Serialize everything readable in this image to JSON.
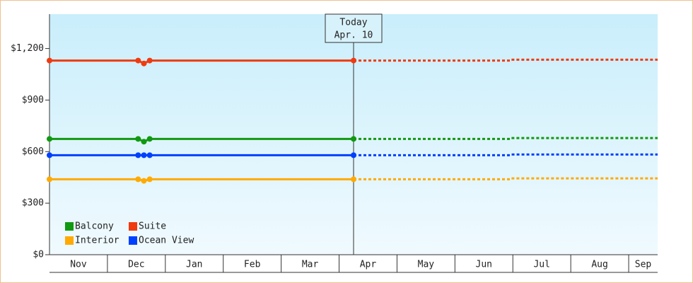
{
  "chart_data": {
    "type": "line",
    "categories": [
      "Nov",
      "Dec",
      "Jan",
      "Feb",
      "Mar",
      "Apr",
      "May",
      "Jun",
      "Jul",
      "Aug",
      "Sep"
    ],
    "xlim": [
      0,
      10.5
    ],
    "ylim": [
      0,
      1400
    ],
    "yticks": [
      {
        "value": 0,
        "label": "$0"
      },
      {
        "value": 300,
        "label": "$300"
      },
      {
        "value": 600,
        "label": "$600"
      },
      {
        "value": 900,
        "label": "$900"
      },
      {
        "value": 1200,
        "label": "$1,200"
      }
    ],
    "today": {
      "x": 5.25,
      "label": "Today",
      "date": "Apr. 10"
    },
    "legend": "bottom-left",
    "series": [
      {
        "name": "Balcony",
        "color": "#119911",
        "x": [
          0,
          1.53,
          1.63,
          1.73,
          5.25
        ],
        "values": [
          674,
          674,
          658,
          674,
          674
        ],
        "forecast": {
          "x": [
            5.25,
            7.95,
            7.96,
            10.5
          ],
          "values": [
            674,
            674,
            679,
            679
          ]
        }
      },
      {
        "name": "Suite",
        "color": "#f03a10",
        "x": [
          0,
          1.53,
          1.63,
          1.73,
          5.25
        ],
        "values": [
          1130,
          1130,
          1113,
          1130,
          1130
        ],
        "forecast": {
          "x": [
            5.25,
            7.95,
            7.96,
            10.5
          ],
          "values": [
            1130,
            1130,
            1135,
            1135
          ]
        }
      },
      {
        "name": "Interior",
        "color": "#ffaa00",
        "x": [
          0,
          1.53,
          1.63,
          1.73,
          5.25
        ],
        "values": [
          439,
          439,
          430,
          439,
          439
        ],
        "forecast": {
          "x": [
            5.25,
            7.95,
            7.96,
            10.5
          ],
          "values": [
            439,
            439,
            444,
            444
          ]
        }
      },
      {
        "name": "Ocean View",
        "color": "#0040ff",
        "x": [
          0,
          1.53,
          1.63,
          1.73,
          5.25
        ],
        "values": [
          579,
          579,
          579,
          579,
          579
        ],
        "forecast": {
          "x": [
            5.25,
            7.95,
            7.96,
            10.5
          ],
          "values": [
            579,
            579,
            583,
            583
          ]
        }
      }
    ]
  }
}
